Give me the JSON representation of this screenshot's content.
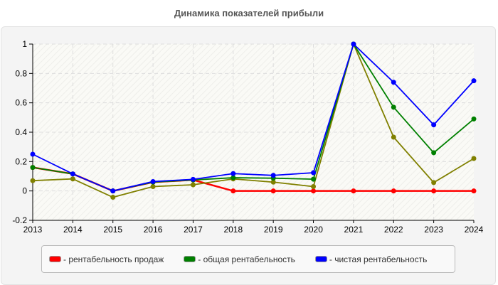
{
  "chart_data": {
    "type": "line",
    "title": "Динамика показателей прибыли",
    "x": [
      2013,
      2014,
      2015,
      2016,
      2017,
      2018,
      2019,
      2020,
      2021,
      2022,
      2023,
      2024
    ],
    "ylim": [
      -0.2,
      1
    ],
    "yticks": [
      "-0.2",
      "0",
      "0.2",
      "0.4",
      "0.6",
      "0.8",
      "1"
    ],
    "grid": true,
    "legend_position": "bottom",
    "series": [
      {
        "name": "- рентабельность продаж",
        "color": "#ff0000",
        "values": [
          0.16,
          0.116,
          0,
          0.06,
          0.075,
          0,
          0,
          0,
          0,
          0,
          0,
          0
        ]
      },
      {
        "name": "- общая рентабельность",
        "color": "#008000",
        "values": [
          0.16,
          0.116,
          0,
          0.06,
          0.075,
          0.09,
          0.087,
          0.08,
          1,
          0.57,
          0.26,
          0.49
        ]
      },
      {
        "name": "- чистая рентабельность",
        "color": "#0000ff",
        "values": [
          0.25,
          0.116,
          0,
          0.064,
          0.079,
          0.118,
          0.106,
          0.124,
          1,
          0.74,
          0.45,
          0.75
        ]
      },
      {
        "color": "#808000",
        "values": [
          0.07,
          0.082,
          -0.043,
          0.03,
          0.042,
          0.082,
          0.06,
          0.03,
          1,
          0.366,
          0.057,
          0.221
        ]
      }
    ]
  }
}
